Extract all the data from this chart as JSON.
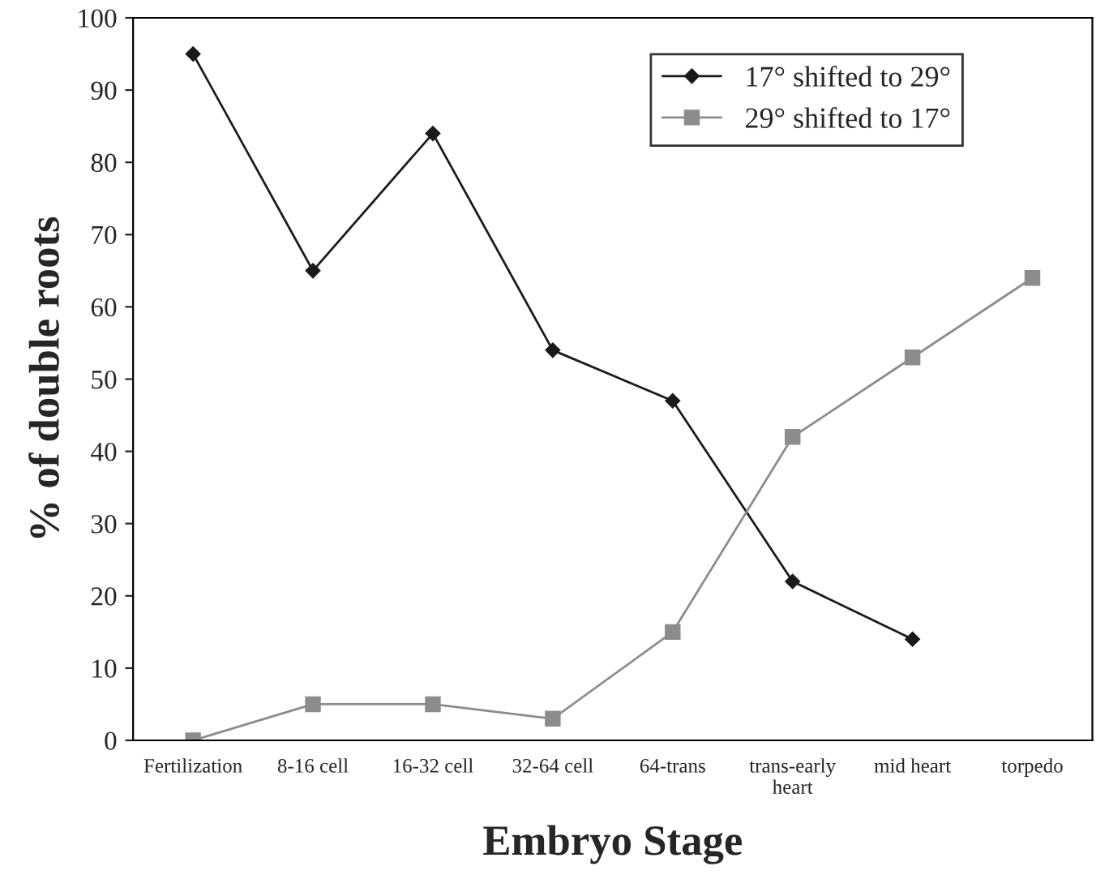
{
  "chart_data": {
    "type": "line",
    "xlabel": "Embryo Stage",
    "ylabel": "% of double roots",
    "categories": [
      "Fertilization",
      "8-16 cell",
      "16-32 cell",
      "32-64 cell",
      "64-trans",
      "trans-early\nheart",
      "mid heart",
      "torpedo"
    ],
    "series": [
      {
        "name": "17° shifted to 29°",
        "color": "#1a1a1a",
        "marker": "diamond",
        "values": [
          95,
          65,
          84,
          54,
          47,
          22,
          14,
          null
        ]
      },
      {
        "name": "29° shifted to 17°",
        "color": "#8c8c8c",
        "marker": "square",
        "values": [
          0,
          5,
          5,
          3,
          15,
          42,
          53,
          64
        ]
      }
    ],
    "ylim": [
      0,
      100
    ],
    "yticks": [
      0,
      10,
      20,
      30,
      40,
      50,
      60,
      70,
      80,
      90,
      100
    ],
    "grid": false,
    "legend": "top right",
    "line_style": "solid"
  }
}
